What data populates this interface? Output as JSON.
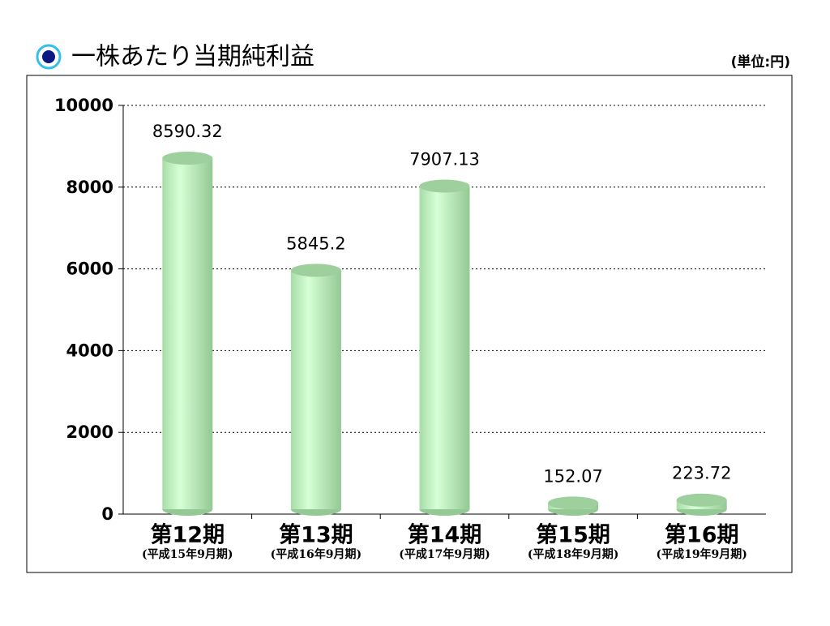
{
  "chart_data": {
    "type": "bar",
    "title": "一株あたり当期純利益",
    "unit_label": "(単位:円)",
    "categories": [
      "第12期",
      "第13期",
      "第14期",
      "第15期",
      "第16期"
    ],
    "sublabels": [
      "(平成15年9月期)",
      "(平成16年9月期)",
      "(平成17年9月期)",
      "(平成18年9月期)",
      "(平成19年9月期)"
    ],
    "values": [
      8590.32,
      5845.2,
      7907.13,
      152.07,
      223.72
    ],
    "color": "#b8f0b8",
    "ylim": [
      0,
      10000
    ],
    "yticks": [
      0,
      2000,
      4000,
      6000,
      8000,
      10000
    ],
    "grid": true
  }
}
